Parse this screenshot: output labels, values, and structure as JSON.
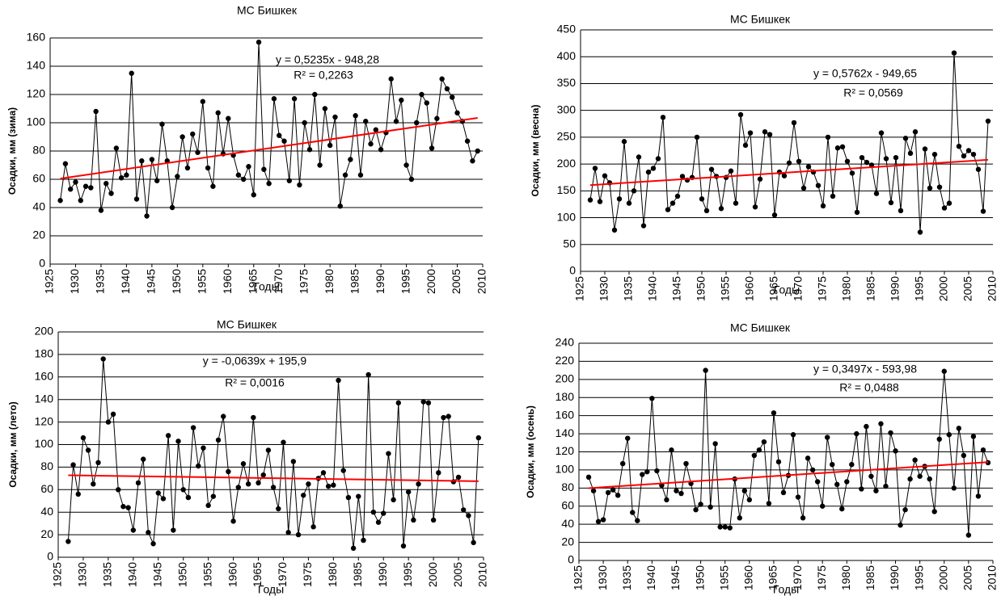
{
  "chart_data": [
    {
      "type": "line",
      "title": "МС Бишкек",
      "xlabel": "Годы",
      "ylabel": "Осадки, мм (зима)",
      "x": [
        1927,
        1928,
        1929,
        1930,
        1931,
        1932,
        1933,
        1934,
        1935,
        1936,
        1937,
        1938,
        1939,
        1940,
        1941,
        1942,
        1943,
        1944,
        1945,
        1946,
        1947,
        1948,
        1949,
        1950,
        1951,
        1952,
        1953,
        1954,
        1955,
        1956,
        1957,
        1958,
        1959,
        1960,
        1961,
        1962,
        1963,
        1964,
        1965,
        1966,
        1967,
        1968,
        1969,
        1970,
        1971,
        1972,
        1973,
        1974,
        1975,
        1976,
        1977,
        1978,
        1979,
        1980,
        1981,
        1982,
        1983,
        1984,
        1985,
        1986,
        1987,
        1988,
        1989,
        1990,
        1991,
        1992,
        1993,
        1994,
        1995,
        1996,
        1997,
        1998,
        1999,
        2000,
        2001,
        2002,
        2003,
        2004,
        2005,
        2006,
        2007,
        2008,
        2009
      ],
      "series": [
        {
          "color": "#000000",
          "values": [
            45,
            71,
            53,
            58,
            45,
            55,
            54,
            108,
            38,
            57,
            50,
            82,
            61,
            63,
            135,
            46,
            73,
            34,
            74,
            59,
            99,
            73,
            40,
            62,
            90,
            68,
            92,
            79,
            115,
            68,
            55,
            107,
            78,
            103,
            77,
            63,
            60,
            69,
            49,
            157,
            67,
            57,
            117,
            91,
            87,
            59,
            117,
            56,
            100,
            81,
            120,
            70,
            110,
            84,
            104,
            41,
            63,
            74,
            105,
            63,
            101,
            85,
            95,
            81,
            93,
            131,
            101,
            116,
            70,
            60,
            100,
            120,
            114,
            82,
            103,
            131,
            124,
            118,
            107,
            101,
            87,
            73,
            80
          ]
        }
      ],
      "trend": {
        "color": "#ff0000",
        "x": [
          1927,
          2009
        ],
        "values": [
          60.5,
          103.4
        ]
      },
      "annotations": [
        "y = 0,5235x - 948,28",
        "R² = 0,2263"
      ],
      "xlim": [
        1925,
        2010
      ],
      "xticks": [
        1925,
        1930,
        1935,
        1940,
        1945,
        1950,
        1955,
        1960,
        1965,
        1970,
        1975,
        1980,
        1985,
        1990,
        1995,
        2000,
        2005,
        2010
      ],
      "ylim": [
        0,
        160
      ],
      "yticks": [
        0,
        20,
        40,
        60,
        80,
        100,
        120,
        140,
        160
      ],
      "grid": true
    },
    {
      "type": "line",
      "title": "МС Бишкек",
      "xlabel": "Годы",
      "ylabel": "Осадки, мм (весна)",
      "x": [
        1927,
        1928,
        1929,
        1930,
        1931,
        1932,
        1933,
        1934,
        1935,
        1936,
        1937,
        1938,
        1939,
        1940,
        1941,
        1942,
        1943,
        1944,
        1945,
        1946,
        1947,
        1948,
        1949,
        1950,
        1951,
        1952,
        1953,
        1954,
        1955,
        1956,
        1957,
        1958,
        1959,
        1960,
        1961,
        1962,
        1963,
        1964,
        1965,
        1966,
        1967,
        1968,
        1969,
        1970,
        1971,
        1972,
        1973,
        1974,
        1975,
        1976,
        1977,
        1978,
        1979,
        1980,
        1981,
        1982,
        1983,
        1984,
        1985,
        1986,
        1987,
        1988,
        1989,
        1990,
        1991,
        1992,
        1993,
        1994,
        1995,
        1996,
        1997,
        1998,
        1999,
        2000,
        2001,
        2002,
        2003,
        2004,
        2005,
        2006,
        2007,
        2008,
        2009
      ],
      "series": [
        {
          "color": "#000000",
          "values": [
            133,
            192,
            130,
            178,
            165,
            77,
            135,
            242,
            127,
            150,
            213,
            85,
            185,
            192,
            210,
            287,
            115,
            127,
            140,
            177,
            170,
            175,
            250,
            135,
            113,
            190,
            177,
            117,
            175,
            187,
            127,
            292,
            235,
            258,
            120,
            172,
            260,
            255,
            105,
            185,
            178,
            202,
            277,
            205,
            155,
            195,
            185,
            160,
            122,
            250,
            140,
            230,
            232,
            205,
            183,
            110,
            212,
            203,
            198,
            145,
            258,
            210,
            128,
            212,
            113,
            248,
            220,
            260,
            73,
            228,
            155,
            218,
            157,
            118,
            127,
            407,
            233,
            215,
            225,
            218,
            190,
            112,
            280
          ]
        }
      ],
      "trend": {
        "color": "#ff0000",
        "x": [
          1927,
          2009
        ],
        "values": [
          160.7,
          207.9
        ]
      },
      "annotations": [
        "y = 0,5762x - 949,65",
        "R² = 0,0569"
      ],
      "xlim": [
        1925,
        2010
      ],
      "xticks": [
        1925,
        1930,
        1935,
        1940,
        1945,
        1950,
        1955,
        1960,
        1965,
        1970,
        1975,
        1980,
        1985,
        1990,
        1995,
        2000,
        2005,
        2010
      ],
      "ylim": [
        0,
        450
      ],
      "yticks": [
        0,
        50,
        100,
        150,
        200,
        250,
        300,
        350,
        400,
        450
      ],
      "grid": true
    },
    {
      "type": "line",
      "title": "МС Бишкек",
      "xlabel": "Годы",
      "ylabel": "Осадки, мм (лето)",
      "x": [
        1927,
        1928,
        1929,
        1930,
        1931,
        1932,
        1933,
        1934,
        1935,
        1936,
        1937,
        1938,
        1939,
        1940,
        1941,
        1942,
        1943,
        1944,
        1945,
        1946,
        1947,
        1948,
        1949,
        1950,
        1951,
        1952,
        1953,
        1954,
        1955,
        1956,
        1957,
        1958,
        1959,
        1960,
        1961,
        1962,
        1963,
        1964,
        1965,
        1966,
        1967,
        1968,
        1969,
        1970,
        1971,
        1972,
        1973,
        1974,
        1975,
        1976,
        1977,
        1978,
        1979,
        1980,
        1981,
        1982,
        1983,
        1984,
        1985,
        1986,
        1987,
        1988,
        1989,
        1990,
        1991,
        1992,
        1993,
        1994,
        1995,
        1996,
        1997,
        1998,
        1999,
        2000,
        2001,
        2002,
        2003,
        2004,
        2005,
        2006,
        2007,
        2008,
        2009
      ],
      "series": [
        {
          "color": "#000000",
          "values": [
            14,
            82,
            56,
            106,
            95,
            65,
            84,
            176,
            120,
            127,
            60,
            45,
            44,
            24,
            66,
            87,
            22,
            12,
            57,
            52,
            108,
            24,
            103,
            60,
            53,
            115,
            81,
            97,
            46,
            54,
            104,
            125,
            76,
            32,
            62,
            83,
            65,
            124,
            66,
            73,
            95,
            62,
            43,
            102,
            22,
            85,
            20,
            55,
            65,
            27,
            70,
            75,
            63,
            64,
            157,
            77,
            53,
            8,
            54,
            15,
            162,
            40,
            31,
            39,
            92,
            51,
            137,
            10,
            58,
            33,
            65,
            138,
            137,
            33,
            75,
            124,
            125,
            67,
            71,
            42,
            37,
            13,
            106
          ]
        }
      ],
      "trend": {
        "color": "#ff0000",
        "x": [
          1927,
          2009
        ],
        "values": [
          72.8,
          67.5
        ]
      },
      "annotations": [
        "y = -0,0639x + 195,9",
        "R² = 0,0016"
      ],
      "xlim": [
        1925,
        2010
      ],
      "xticks": [
        1925,
        1930,
        1935,
        1940,
        1945,
        1950,
        1955,
        1960,
        1965,
        1970,
        1975,
        1980,
        1985,
        1990,
        1995,
        2000,
        2005,
        2010
      ],
      "ylim": [
        0,
        200
      ],
      "yticks": [
        0,
        20,
        40,
        60,
        80,
        100,
        120,
        140,
        160,
        180,
        200
      ],
      "grid": true
    },
    {
      "type": "line",
      "title": "МС Бишкек",
      "xlabel": "Годы",
      "ylabel": "Осадки, мм (осень)",
      "x": [
        1927,
        1928,
        1929,
        1930,
        1931,
        1932,
        1933,
        1934,
        1935,
        1936,
        1937,
        1938,
        1939,
        1940,
        1941,
        1942,
        1943,
        1944,
        1945,
        1946,
        1947,
        1948,
        1949,
        1950,
        1951,
        1952,
        1953,
        1954,
        1955,
        1956,
        1957,
        1958,
        1959,
        1960,
        1961,
        1962,
        1963,
        1964,
        1965,
        1966,
        1967,
        1968,
        1969,
        1970,
        1971,
        1972,
        1973,
        1974,
        1975,
        1976,
        1977,
        1978,
        1979,
        1980,
        1981,
        1982,
        1983,
        1984,
        1985,
        1986,
        1987,
        1988,
        1989,
        1990,
        1991,
        1992,
        1993,
        1994,
        1995,
        1996,
        1997,
        1998,
        1999,
        2000,
        2001,
        2002,
        2003,
        2004,
        2005,
        2006,
        2007,
        2008,
        2009
      ],
      "series": [
        {
          "color": "#000000",
          "values": [
            92,
            77,
            43,
            45,
            75,
            78,
            72,
            107,
            135,
            53,
            44,
            95,
            98,
            179,
            99,
            83,
            67,
            122,
            77,
            74,
            107,
            85,
            56,
            62,
            210,
            59,
            129,
            37,
            37,
            36,
            90,
            47,
            77,
            67,
            116,
            122,
            131,
            63,
            163,
            109,
            75,
            94,
            139,
            70,
            47,
            113,
            100,
            87,
            60,
            136,
            106,
            84,
            57,
            87,
            106,
            140,
            79,
            148,
            93,
            77,
            151,
            82,
            141,
            121,
            39,
            56,
            90,
            111,
            93,
            104,
            90,
            54,
            134,
            209,
            139,
            80,
            146,
            116,
            28,
            137,
            71,
            122,
            108
          ]
        }
      ],
      "trend": {
        "color": "#ff0000",
        "x": [
          1927,
          2009
        ],
        "values": [
          79.9,
          108.6
        ]
      },
      "annotations": [
        "y = 0,3497x - 593,98",
        "R² = 0,0488"
      ],
      "xlim": [
        1925,
        2010
      ],
      "xticks": [
        1925,
        1930,
        1935,
        1940,
        1945,
        1950,
        1955,
        1960,
        1965,
        1970,
        1975,
        1980,
        1985,
        1990,
        1995,
        2000,
        2005,
        2010
      ],
      "ylim": [
        0,
        240
      ],
      "yticks": [
        0,
        20,
        40,
        60,
        80,
        100,
        120,
        140,
        160,
        180,
        200,
        220,
        240
      ],
      "grid": true
    }
  ]
}
